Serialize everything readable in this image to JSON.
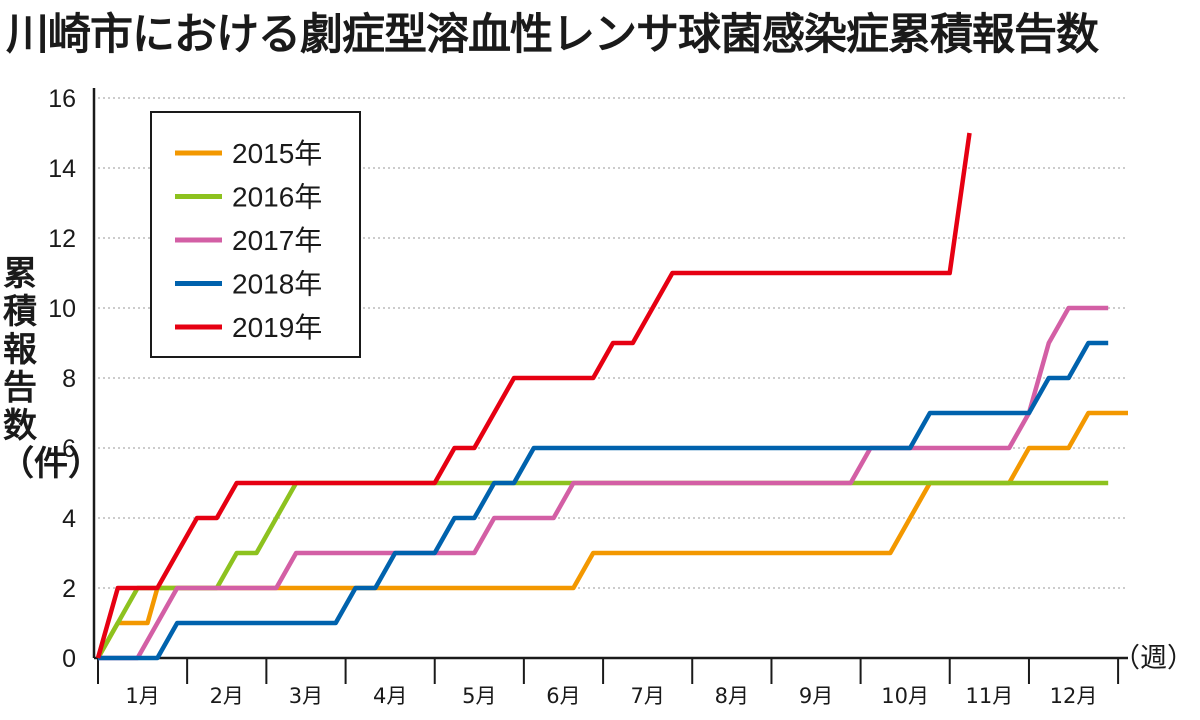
{
  "chart_data": {
    "type": "line",
    "title": "川崎市における劇症型溶血性レンサ球菌感染症累積報告数",
    "ylabel": "累積報告数（件）",
    "xlabel": "（週）",
    "ylim": [
      0,
      16
    ],
    "xlim": [
      0,
      52
    ],
    "yticks": [
      "0",
      "2",
      "4",
      "6",
      "8",
      "10",
      "12",
      "14",
      "16"
    ],
    "months": [
      "1月",
      "2月",
      "3月",
      "4月",
      "5月",
      "6月",
      "7月",
      "8月",
      "9月",
      "10月",
      "11月",
      "12月"
    ],
    "month_boundaries": [
      0,
      4.5,
      8.5,
      12.5,
      17,
      21.5,
      25.5,
      30,
      34,
      38.5,
      43,
      47,
      51.5
    ],
    "grid": true,
    "legend_position": "top-left",
    "series": [
      {
        "name": "2015年",
        "color": "#f39800",
        "points": [
          [
            0,
            0
          ],
          [
            1,
            1
          ],
          [
            2.5,
            1
          ],
          [
            3,
            2
          ],
          [
            24,
            2
          ],
          [
            25,
            3
          ],
          [
            40,
            3
          ],
          [
            42,
            5
          ],
          [
            46,
            5
          ],
          [
            47,
            6
          ],
          [
            49,
            6
          ],
          [
            50,
            7
          ],
          [
            52,
            7
          ]
        ]
      },
      {
        "name": "2016年",
        "color": "#8dc21f",
        "points": [
          [
            0,
            0
          ],
          [
            2,
            2
          ],
          [
            6,
            2
          ],
          [
            7,
            3
          ],
          [
            8,
            3
          ],
          [
            10,
            5
          ],
          [
            51,
            5
          ]
        ]
      },
      {
        "name": "2017年",
        "color": "#d35fa5",
        "points": [
          [
            0,
            0
          ],
          [
            2,
            0
          ],
          [
            4,
            2
          ],
          [
            9,
            2
          ],
          [
            10,
            3
          ],
          [
            17,
            3
          ],
          [
            19,
            3
          ],
          [
            20,
            4
          ],
          [
            23,
            4
          ],
          [
            24,
            5
          ],
          [
            38,
            5
          ],
          [
            39,
            6
          ],
          [
            46,
            6
          ],
          [
            47,
            7
          ],
          [
            48,
            9
          ],
          [
            49,
            10
          ],
          [
            51,
            10
          ]
        ]
      },
      {
        "name": "2018年",
        "color": "#0062ad",
        "points": [
          [
            0,
            0
          ],
          [
            3,
            0
          ],
          [
            4,
            1
          ],
          [
            12,
            1
          ],
          [
            13,
            2
          ],
          [
            14,
            2
          ],
          [
            15,
            3
          ],
          [
            17,
            3
          ],
          [
            18,
            4
          ],
          [
            19,
            4
          ],
          [
            20,
            5
          ],
          [
            21,
            5
          ],
          [
            22,
            6
          ],
          [
            41,
            6
          ],
          [
            42,
            7
          ],
          [
            47,
            7
          ],
          [
            48,
            8
          ],
          [
            49,
            8
          ],
          [
            50,
            9
          ],
          [
            51,
            9
          ]
        ]
      },
      {
        "name": "2019年",
        "color": "#e60012",
        "points": [
          [
            0,
            0
          ],
          [
            1,
            2
          ],
          [
            3,
            2
          ],
          [
            5,
            4
          ],
          [
            6,
            4
          ],
          [
            7,
            5
          ],
          [
            17,
            5
          ],
          [
            18,
            6
          ],
          [
            19,
            6
          ],
          [
            21,
            8
          ],
          [
            25,
            8
          ],
          [
            26,
            9
          ],
          [
            27,
            9
          ],
          [
            29,
            11
          ],
          [
            43,
            11
          ],
          [
            44,
            15
          ]
        ]
      }
    ]
  }
}
